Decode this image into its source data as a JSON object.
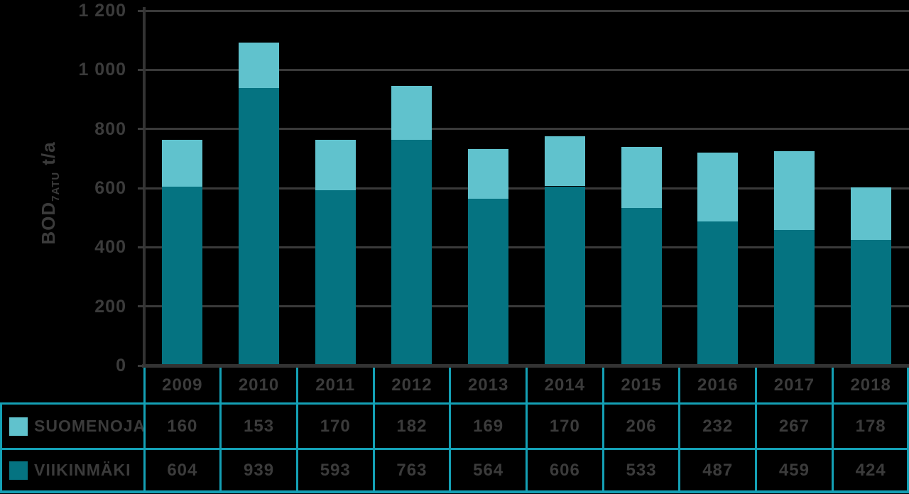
{
  "chart_data": {
    "type": "bar",
    "stacked": true,
    "title": "",
    "categories": [
      "2009",
      "2010",
      "2011",
      "2012",
      "2013",
      "2014",
      "2015",
      "2016",
      "2017",
      "2018"
    ],
    "series": [
      {
        "name": "SUOMENOJA",
        "color": "#60C2CD",
        "values": [
          160,
          153,
          170,
          182,
          169,
          170,
          206,
          232,
          267,
          178
        ]
      },
      {
        "name": "VIIKINMÄKI",
        "color": "#057381",
        "values": [
          604,
          939,
          593,
          763,
          564,
          606,
          533,
          487,
          459,
          424
        ]
      }
    ],
    "stack_bottom_series": "VIIKINMÄKI",
    "xlabel": "",
    "ylabel": "BOD7ATU t/a",
    "ylabel_parts": {
      "main": "BOD",
      "sub": "7ATU",
      "unit": "t/a"
    },
    "ylim": [
      0,
      1200
    ],
    "ytick_step": 200,
    "ytick_labels": [
      "0",
      "200",
      "400",
      "600",
      "800",
      "1 000",
      "1 200"
    ],
    "grid": true,
    "legend_position": "table rows below chart, left column"
  },
  "colors": {
    "background": "#000000",
    "suomenoja": "#60C2CD",
    "viikinmaki": "#057381",
    "table_border": "#14A0B5",
    "text": "#3B3B3B",
    "gridline": "#3A3A3A",
    "axis_line": "#333333"
  }
}
